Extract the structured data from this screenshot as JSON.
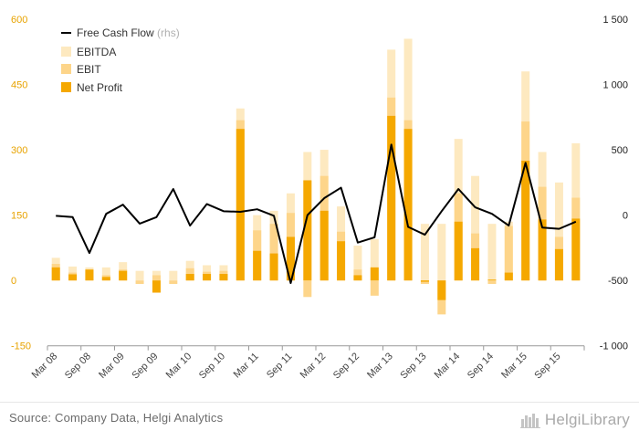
{
  "chart_data": {
    "type": "bar",
    "categories": [
      "Mar 08",
      "Jun 08",
      "Sep 08",
      "Dec 08",
      "Mar 09",
      "Jun 09",
      "Sep 09",
      "Dec 09",
      "Mar 10",
      "Jun 10",
      "Sep 10",
      "Dec 10",
      "Mar 11",
      "Jun 11",
      "Sep 11",
      "Dec 11",
      "Mar 12",
      "Jun 12",
      "Sep 12",
      "Dec 12",
      "Mar 13",
      "Jun 13",
      "Sep 13",
      "Dec 13",
      "Mar 14",
      "Jun 14",
      "Sep 14",
      "Dec 14",
      "Mar 15",
      "Jun 15",
      "Sep 15",
      "Dec 15"
    ],
    "x_tick_labels": [
      "Mar 08",
      "Sep 08",
      "Mar 09",
      "Sep 09",
      "Mar 10",
      "Sep 10",
      "Mar 11",
      "Sep 11",
      "Mar 12",
      "Sep 12",
      "Mar 13",
      "Sep 13",
      "Mar 14",
      "Sep 14",
      "Mar 15",
      "Sep 15"
    ],
    "series": [
      {
        "name": "EBITDA",
        "color": "#fde9c0",
        "axis": "left",
        "values": [
          52,
          32,
          30,
          30,
          42,
          22,
          22,
          22,
          45,
          35,
          35,
          395,
          150,
          160,
          200,
          295,
          300,
          170,
          80,
          95,
          530,
          555,
          130,
          130,
          325,
          240,
          130,
          135,
          480,
          295,
          225,
          315
        ]
      },
      {
        "name": "EBIT",
        "color": "#fdd58a",
        "axis": "left",
        "values": [
          38,
          18,
          25,
          12,
          25,
          -8,
          12,
          -8,
          28,
          20,
          22,
          368,
          115,
          130,
          155,
          -38,
          240,
          112,
          25,
          -35,
          420,
          368,
          -8,
          -78,
          200,
          108,
          -8,
          125,
          365,
          215,
          100,
          190
        ]
      },
      {
        "name": "Net Profit",
        "color": "#f5a800",
        "axis": "left",
        "values": [
          30,
          14,
          25,
          8,
          22,
          0,
          -28,
          0,
          15,
          15,
          15,
          348,
          68,
          62,
          100,
          230,
          160,
          90,
          12,
          30,
          378,
          348,
          -3,
          -45,
          135,
          74,
          2,
          18,
          275,
          140,
          72,
          142
        ]
      },
      {
        "name": "Free Cash Flow",
        "color": "#000000",
        "axis": "right",
        "type": "line",
        "values": [
          -5,
          -15,
          -290,
          10,
          80,
          -65,
          -15,
          200,
          -80,
          85,
          30,
          25,
          45,
          -5,
          -520,
          0,
          130,
          210,
          -210,
          -170,
          540,
          -90,
          -150,
          30,
          200,
          60,
          10,
          -80,
          400,
          -95,
          -105,
          -50
        ]
      }
    ],
    "legend": [
      {
        "label": "Free Cash Flow",
        "note": "(rhs)"
      },
      {
        "label": "EBITDA"
      },
      {
        "label": "EBIT"
      },
      {
        "label": "Net Profit"
      }
    ],
    "legend_position": "top-left",
    "y_left": {
      "min": -150,
      "max": 600,
      "ticks": [
        600,
        450,
        300,
        150,
        0,
        -150
      ],
      "tick_labels": [
        "600",
        "450",
        "300",
        "150",
        "0",
        "-150"
      ],
      "color": "#e8a300"
    },
    "y_right": {
      "min": -1000,
      "max": 1500,
      "ticks": [
        1500,
        1000,
        500,
        0,
        -500,
        -1000
      ],
      "tick_labels": [
        "1 500",
        "1 000",
        "500",
        "0",
        "-500",
        "-1 000"
      ]
    },
    "grid": false
  },
  "footer": {
    "source": "Source: Company Data, Helgi Analytics",
    "brand": "HelgiLibrary"
  }
}
